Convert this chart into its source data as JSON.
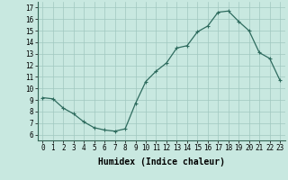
{
  "x": [
    0,
    1,
    2,
    3,
    4,
    5,
    6,
    7,
    8,
    9,
    10,
    11,
    12,
    13,
    14,
    15,
    16,
    17,
    18,
    19,
    20,
    21,
    22,
    23
  ],
  "y": [
    9.2,
    9.1,
    8.3,
    7.8,
    7.1,
    6.6,
    6.4,
    6.3,
    6.5,
    8.7,
    10.6,
    11.5,
    12.2,
    13.5,
    13.7,
    14.9,
    15.4,
    16.6,
    16.7,
    15.8,
    15.0,
    13.1,
    12.6,
    10.7
  ],
  "xlabel": "Humidex (Indice chaleur)",
  "xlim": [
    -0.5,
    23.5
  ],
  "ylim": [
    5.5,
    17.5
  ],
  "yticks": [
    6,
    7,
    8,
    9,
    10,
    11,
    12,
    13,
    14,
    15,
    16,
    17
  ],
  "xticks": [
    0,
    1,
    2,
    3,
    4,
    5,
    6,
    7,
    8,
    9,
    10,
    11,
    12,
    13,
    14,
    15,
    16,
    17,
    18,
    19,
    20,
    21,
    22,
    23
  ],
  "line_color": "#2e6b5e",
  "marker": "+",
  "bg_color": "#c8e8e0",
  "grid_color": "#a0c8c0",
  "xlabel_fontsize": 7,
  "tick_fontsize": 5.5
}
